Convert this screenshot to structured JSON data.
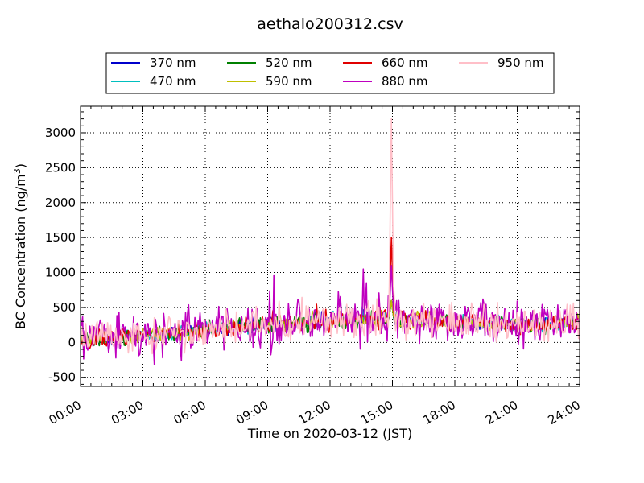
{
  "chart_data": {
    "type": "line",
    "title": "aethalo200312.csv",
    "xlabel": "Time on 2020-03-12 (JST)",
    "ylabel_main": "BC Concentration (ng/m",
    "ylabel_sup": "3",
    "ylabel_close": ")",
    "x_ticks": [
      "00:00",
      "03:00",
      "06:00",
      "09:00",
      "12:00",
      "15:00",
      "18:00",
      "21:00",
      "24:00"
    ],
    "x_hour_range": [
      0,
      24
    ],
    "y_ticks": [
      "-500",
      "0",
      "500",
      "1000",
      "1500",
      "2000",
      "2500",
      "3000"
    ],
    "ylim": [
      -630,
      3380
    ],
    "grid": true,
    "legend_placement": "top-center",
    "series": [
      {
        "name": "370 nm",
        "color": "#0000cc",
        "variability": 0.55,
        "seed": 11
      },
      {
        "name": "470 nm",
        "color": "#00bfbf",
        "variability": 0.55,
        "seed": 12
      },
      {
        "name": "520 nm",
        "color": "#008000",
        "variability": 0.65,
        "seed": 13
      },
      {
        "name": "590 nm",
        "color": "#bfbf00",
        "variability": 0.65,
        "seed": 14
      },
      {
        "name": "660 nm",
        "color": "#e00000",
        "variability": 0.75,
        "seed": 15
      },
      {
        "name": "880 nm",
        "color": "#bf00bf",
        "variability": 1.9,
        "seed": 16
      },
      {
        "name": "950 nm",
        "color": "#ffbfc8",
        "variability": 1.5,
        "seed": 17
      }
    ],
    "baseline_hourly": [
      30,
      60,
      80,
      100,
      120,
      150,
      180,
      210,
      230,
      260,
      270,
      280,
      300,
      310,
      330,
      330,
      320,
      310,
      300,
      280,
      270,
      260,
      250,
      260,
      300
    ],
    "spike": {
      "hour": 14.95,
      "peak_950nm": 3200,
      "peak_660nm": 1500,
      "peak_880nm": 1100
    }
  }
}
